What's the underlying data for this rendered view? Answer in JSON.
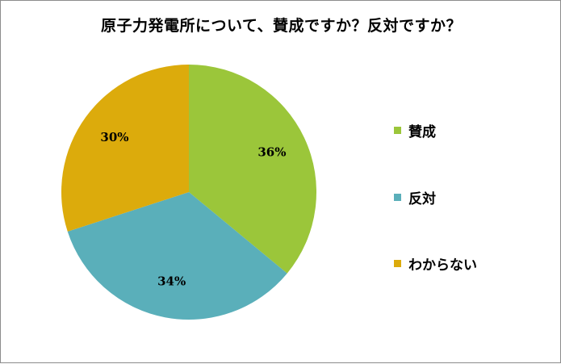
{
  "chart_data": {
    "type": "pie",
    "title": "原子力発電所について、賛成ですか？反対ですか？",
    "categories": [
      "賛成",
      "反対",
      "わからない"
    ],
    "values": [
      36,
      34,
      30
    ],
    "labels": [
      "36%",
      "34%",
      "30%"
    ],
    "colors": [
      "#9bc63a",
      "#5aafba",
      "#dcab0c"
    ],
    "legend_position": "right"
  }
}
